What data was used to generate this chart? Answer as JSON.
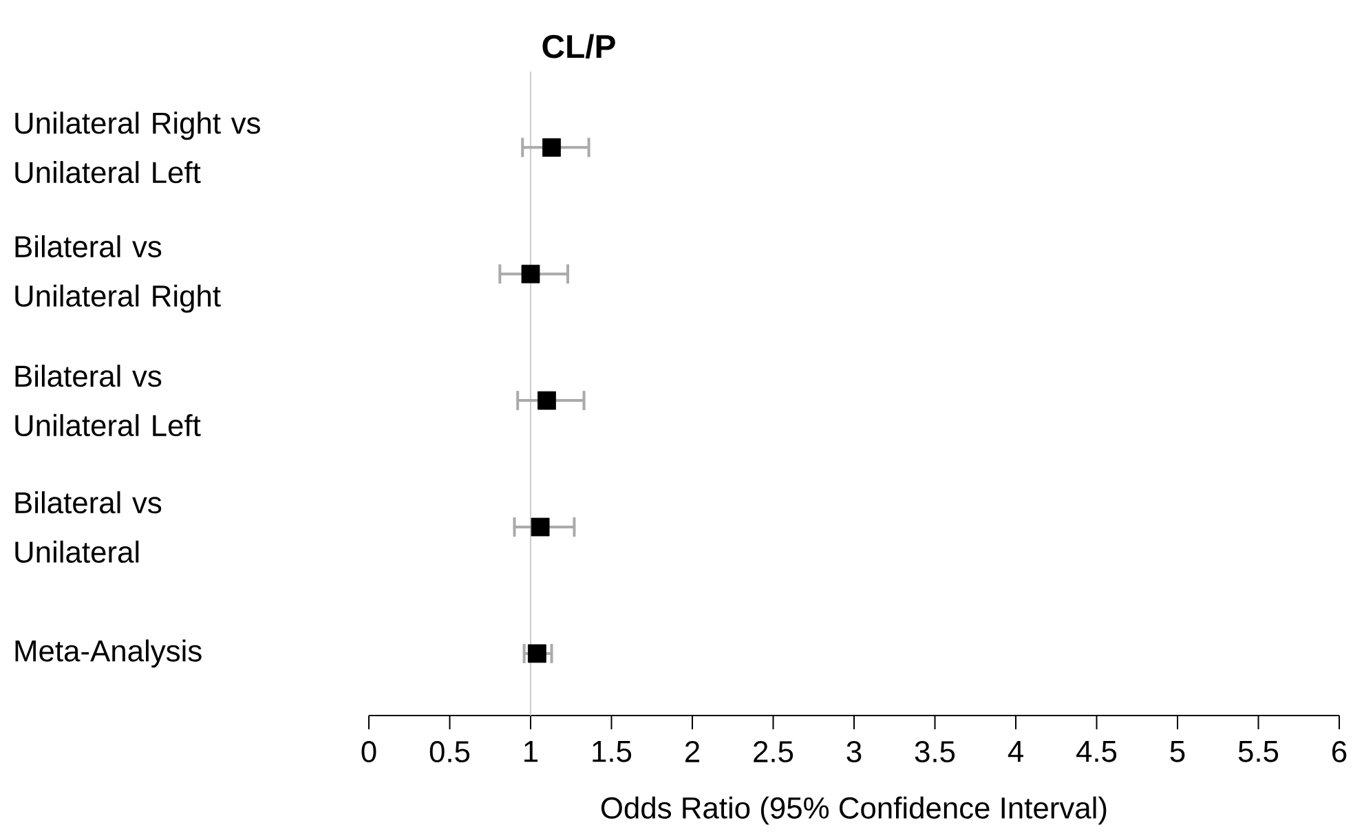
{
  "chart_data": {
    "type": "scatter",
    "title": "CL/P",
    "xlabel": "Odds Ratio (95% Confidence Interval)",
    "orientation": "horizontal",
    "categories": [
      "Unilateral Right vs Unilateral Left",
      "Bilateral vs Unilateral Right",
      "Bilateral vs Unilateral Left",
      "Bilateral vs Unilateral",
      "Meta-Analysis"
    ],
    "values": [
      1.13,
      1.0,
      1.1,
      1.06,
      1.04
    ],
    "errors": [
      [
        0.95,
        1.36
      ],
      [
        0.81,
        1.23
      ],
      [
        0.92,
        1.33
      ],
      [
        0.9,
        1.27
      ],
      [
        0.96,
        1.13
      ]
    ],
    "color": "#000000",
    "marker": "square",
    "xlim": [
      0,
      6
    ],
    "xticks": [
      0,
      0.5,
      1,
      1.5,
      2,
      2.5,
      3,
      3.5,
      4,
      4.5,
      5,
      5.5,
      6
    ],
    "ref_lines": [
      {
        "axis": "x",
        "value": 1,
        "color": "#cccccc"
      }
    ],
    "grid": false
  }
}
